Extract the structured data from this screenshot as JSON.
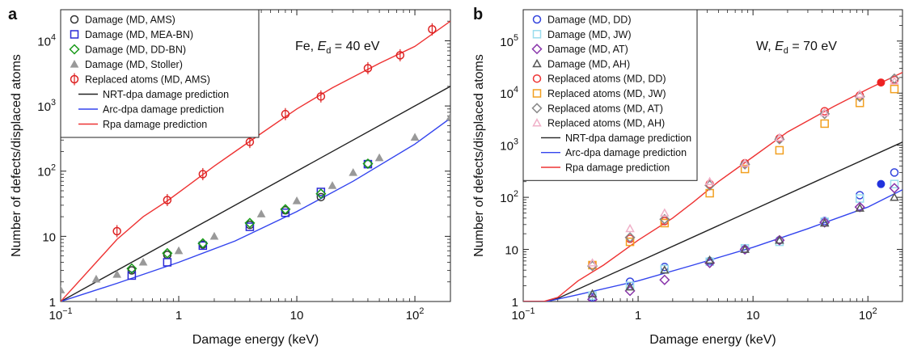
{
  "chart_data": [
    {
      "panel": "a",
      "type": "scatter",
      "annotation": {
        "prefix": "Fe, ",
        "symbol": "E",
        "subscript": "d",
        "suffix": " = 40 eV"
      },
      "xlabel": "Damage energy (keV)",
      "ylabel": "Number of defects/displaced atoms",
      "xscale": "log",
      "yscale": "log",
      "xlim": [
        0.1,
        200
      ],
      "ylim": [
        1,
        30000
      ],
      "xticks": [
        {
          "value": 0.1,
          "base": "10",
          "exp": "−1"
        },
        {
          "value": 1,
          "base": "1",
          "exp": ""
        },
        {
          "value": 10,
          "base": "10",
          "exp": ""
        },
        {
          "value": 100,
          "base": "10",
          "exp": "2"
        }
      ],
      "yticks": [
        {
          "value": 1,
          "base": "1",
          "exp": ""
        },
        {
          "value": 10,
          "base": "10",
          "exp": ""
        },
        {
          "value": 100,
          "base": "10",
          "exp": "2"
        },
        {
          "value": 1000,
          "base": "10",
          "exp": "3"
        },
        {
          "value": 10000,
          "base": "10",
          "exp": "4"
        }
      ],
      "legend_position": "top-left",
      "series": [
        {
          "name": "Damage (MD, AMS)",
          "marker": "circle-open",
          "color": "#333333",
          "x": [
            0.4,
            0.8,
            1.6,
            4,
            8,
            16,
            40
          ],
          "y": [
            3.0,
            5.2,
            7.5,
            15,
            25,
            40,
            130
          ]
        },
        {
          "name": "Damage (MD, MEA-BN)",
          "marker": "square-open",
          "color": "#2a2ad6",
          "x": [
            0.4,
            0.8,
            1.6,
            4,
            8,
            16,
            40
          ],
          "y": [
            2.5,
            4.0,
            7.2,
            14,
            23,
            48,
            128
          ]
        },
        {
          "name": "Damage (MD, DD-BN)",
          "marker": "diamond-open",
          "color": "#1a9a1a",
          "x": [
            0.4,
            0.8,
            1.6,
            4,
            8,
            16,
            40
          ],
          "y": [
            3.2,
            5.5,
            7.8,
            16,
            26,
            45,
            130
          ]
        },
        {
          "name": "Damage (MD, Stoller)",
          "marker": "triangle-filled",
          "color": "#999999",
          "x": [
            0.1,
            0.2,
            0.3,
            0.5,
            1,
            2,
            5,
            10,
            20,
            30,
            50,
            100,
            200
          ],
          "y": [
            1.5,
            2.2,
            2.6,
            4.0,
            6.0,
            10,
            22,
            35,
            60,
            95,
            160,
            330,
            680
          ]
        },
        {
          "name": "Replaced atoms (MD, AMS)",
          "marker": "circle-open-errorbar",
          "color": "#dd2222",
          "x": [
            0.3,
            0.8,
            1.6,
            4,
            8,
            16,
            40,
            75,
            140
          ],
          "y": [
            12,
            36,
            90,
            280,
            750,
            1400,
            3800,
            6000,
            15000
          ]
        },
        {
          "name": "NRT-dpa damage prediction",
          "marker": "line",
          "color": "#222222",
          "x": [
            0.1,
            200
          ],
          "y": [
            1,
            2000
          ]
        },
        {
          "name": "Arc-dpa damage prediction",
          "marker": "line",
          "color": "#3344ee",
          "x": [
            0.1,
            0.3,
            1,
            3,
            10,
            30,
            100,
            200
          ],
          "y": [
            1,
            1.9,
            4,
            8.5,
            24,
            70,
            260,
            650
          ]
        },
        {
          "name": "Rpa damage prediction",
          "marker": "line",
          "color": "#ee3333",
          "x": [
            0.1,
            0.2,
            0.3,
            0.5,
            0.8,
            1.2,
            2,
            3,
            5,
            10,
            20,
            50,
            100,
            200
          ],
          "y": [
            1,
            4,
            9,
            20,
            35,
            60,
            120,
            200,
            380,
            900,
            1900,
            4500,
            8200,
            20000
          ]
        }
      ]
    },
    {
      "panel": "b",
      "type": "scatter",
      "annotation": {
        "prefix": "W, ",
        "symbol": "E",
        "subscript": "d",
        "suffix": " = 70 eV"
      },
      "xlabel": "Damage energy (keV)",
      "ylabel": "Number of defects/displaced atoms",
      "xscale": "log",
      "yscale": "log",
      "xlim": [
        0.1,
        200
      ],
      "ylim": [
        1,
        400000
      ],
      "xticks": [
        {
          "value": 0.1,
          "base": "10",
          "exp": "−1"
        },
        {
          "value": 1,
          "base": "1",
          "exp": ""
        },
        {
          "value": 10,
          "base": "10",
          "exp": ""
        },
        {
          "value": 100,
          "base": "10",
          "exp": "2"
        }
      ],
      "yticks": [
        {
          "value": 1,
          "base": "1",
          "exp": ""
        },
        {
          "value": 10,
          "base": "10",
          "exp": ""
        },
        {
          "value": 100,
          "base": "10",
          "exp": "2"
        },
        {
          "value": 1000,
          "base": "10",
          "exp": "3"
        },
        {
          "value": 10000,
          "base": "10",
          "exp": "4"
        },
        {
          "value": 100000,
          "base": "10",
          "exp": "5"
        }
      ],
      "legend_position": "top-left",
      "series": [
        {
          "name": "Damage (MD, DD)",
          "marker": "circle-open",
          "color": "#3344dd",
          "x": [
            0.4,
            0.85,
            1.7,
            4.2,
            8.5,
            17,
            42,
            85,
            170
          ],
          "y": [
            1.2,
            2.4,
            4.6,
            6.0,
            10,
            15,
            35,
            110,
            300
          ]
        },
        {
          "name": "Damage (MD, JW)",
          "marker": "square-open",
          "color": "#99ddee",
          "x": [
            0.4,
            0.85,
            1.7,
            4.2,
            8.5,
            17,
            42,
            85,
            170
          ],
          "y": [
            1.3,
            2.0,
            4.2,
            5.8,
            10.5,
            14,
            34,
            95,
            180
          ]
        },
        {
          "name": "Damage (MD, AT)",
          "marker": "diamond-open",
          "color": "#8833aa",
          "x": [
            0.4,
            0.85,
            1.7,
            4.2,
            8.5,
            17,
            42,
            85,
            170
          ],
          "y": [
            1.1,
            1.6,
            2.6,
            5.5,
            10,
            15,
            33,
            65,
            150
          ]
        },
        {
          "name": "Damage (MD, AH)",
          "marker": "triangle-open",
          "color": "#555555",
          "x": [
            0.4,
            0.85,
            1.7,
            4.2,
            8.5,
            17,
            42,
            85,
            170
          ],
          "y": [
            1.4,
            1.9,
            4.0,
            6.2,
            10,
            15,
            32,
            62,
            100
          ]
        },
        {
          "name": "Replaced atoms (MD, DD)",
          "marker": "circle-open",
          "color": "#ee3333",
          "x": [
            0.4,
            0.85,
            1.7,
            4.2,
            8.5,
            17,
            42,
            85,
            170
          ],
          "y": [
            5,
            16,
            35,
            180,
            450,
            1350,
            4500,
            9000,
            18000
          ]
        },
        {
          "name": "Replaced atoms (MD, JW)",
          "marker": "square-open",
          "color": "#f2a020",
          "x": [
            0.4,
            0.85,
            1.7,
            4.2,
            8.5,
            17,
            42,
            85,
            170
          ],
          "y": [
            5,
            14,
            32,
            120,
            350,
            800,
            2600,
            6500,
            12000
          ]
        },
        {
          "name": "Replaced atoms (MD, AT)",
          "marker": "diamond-open",
          "color": "#888888",
          "x": [
            0.4,
            0.85,
            1.7,
            4.2,
            8.5,
            17,
            42,
            85,
            170
          ],
          "y": [
            4.8,
            17,
            38,
            170,
            430,
            1300,
            4000,
            8500,
            19000
          ]
        },
        {
          "name": "Replaced atoms (MD, AH)",
          "marker": "triangle-open",
          "color": "#f0b0c8",
          "x": [
            0.4,
            0.85,
            1.7,
            4.2,
            8.5,
            17,
            42,
            85,
            170
          ],
          "y": [
            5.5,
            25,
            50,
            200,
            450,
            1400,
            4200,
            9500,
            17000
          ]
        },
        {
          "name": "",
          "marker": "circle-filled",
          "color": "#ee2222",
          "x": [
            130
          ],
          "y": [
            16000
          ]
        },
        {
          "name": "",
          "marker": "circle-filled",
          "color": "#2233dd",
          "x": [
            130
          ],
          "y": [
            180
          ]
        },
        {
          "name": "NRT-dpa damage prediction",
          "marker": "line",
          "color": "#222222",
          "x": [
            0.1,
            0.16,
            0.2,
            200
          ],
          "y": [
            1,
            1,
            1.15,
            1150
          ]
        },
        {
          "name": "Arc-dpa damage prediction",
          "marker": "line",
          "color": "#3344ee",
          "x": [
            0.1,
            0.16,
            0.3,
            1,
            3,
            10,
            30,
            100,
            200
          ],
          "y": [
            1,
            1,
            1.35,
            2.5,
            5,
            11,
            25,
            65,
            140
          ]
        },
        {
          "name": "Rpa damage prediction",
          "marker": "line",
          "color": "#ee3333",
          "x": [
            0.1,
            0.15,
            0.2,
            0.3,
            0.5,
            1,
            2,
            3,
            5,
            10,
            20,
            50,
            100,
            200
          ],
          "y": [
            1,
            1,
            1.2,
            2.5,
            5,
            15,
            40,
            80,
            200,
            600,
            1800,
            5500,
            12000,
            25000
          ]
        }
      ]
    }
  ]
}
